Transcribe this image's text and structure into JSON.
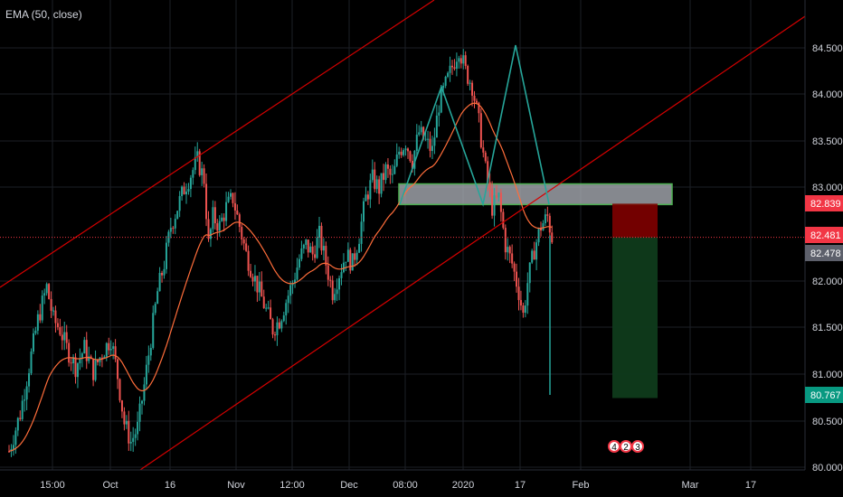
{
  "indicator": {
    "label": "EMA (50, close)"
  },
  "colors": {
    "background": "#000000",
    "grid": "#1c1f26",
    "candle_up": "#26a69a",
    "candle_down": "#ef5350",
    "ema": "#ff6d3a",
    "channel": "#d50000",
    "zigzag": "#26a69a",
    "zone_fill": "#b2b5be",
    "zone_border": "#4caf50",
    "stop_zone": "#7f0000",
    "target_zone": "#0f3b1b"
  },
  "chart_data": {
    "type": "candlestick",
    "symbol_pair_scale": "price",
    "y_ticks": [
      "84.500",
      "84.000",
      "83.500",
      "83.000",
      "82.000",
      "81.500",
      "81.000",
      "80.500",
      "80.000"
    ],
    "ylim": [
      80.0,
      84.85
    ],
    "x_ticks": [
      "15:00",
      "Oct",
      "16",
      "Nov",
      "12:00",
      "Dec",
      "08:00",
      "2020",
      "17",
      "Feb",
      "Mar",
      "17"
    ],
    "price_tags": [
      {
        "label": "82.839",
        "value": 82.839,
        "color": "#f23645"
      },
      {
        "label": "82.481",
        "value": 82.481,
        "color": "#f23645"
      },
      {
        "label": "82.478",
        "value": 82.478,
        "color": "#5d606b"
      },
      {
        "label": "80.767",
        "value": 80.767,
        "color": "#089981"
      }
    ],
    "current_price_line": 82.481,
    "resistance_zone": {
      "from": 82.83,
      "to": 83.05
    },
    "trade_setup": {
      "entry": 82.481,
      "stop": 82.839,
      "target": 80.767
    },
    "event_badges": [
      "4",
      "2",
      "3"
    ],
    "close_path": [
      [
        0,
        80.2
      ],
      [
        5,
        80.6
      ],
      [
        9,
        81.1
      ],
      [
        13,
        81.6
      ],
      [
        17,
        81.95
      ],
      [
        20,
        81.6
      ],
      [
        23,
        81.5
      ],
      [
        26,
        81.3
      ],
      [
        30,
        81.1
      ],
      [
        34,
        81.3
      ],
      [
        38,
        81.05
      ],
      [
        42,
        81.25
      ],
      [
        46,
        81.4
      ],
      [
        49,
        81.0
      ],
      [
        52,
        80.5
      ],
      [
        55,
        80.3
      ],
      [
        58,
        80.45
      ],
      [
        61,
        80.9
      ],
      [
        64,
        81.4
      ],
      [
        67,
        81.9
      ],
      [
        70,
        82.2
      ],
      [
        73,
        82.6
      ],
      [
        76,
        82.8
      ],
      [
        79,
        83.0
      ],
      [
        82,
        83.15
      ],
      [
        85,
        83.3
      ],
      [
        88,
        83.1
      ],
      [
        90,
        82.4
      ],
      [
        92,
        82.7
      ],
      [
        95,
        82.6
      ],
      [
        98,
        82.8
      ],
      [
        101,
        82.9
      ],
      [
        104,
        82.6
      ],
      [
        107,
        82.3
      ],
      [
        110,
        82.1
      ],
      [
        113,
        81.9
      ],
      [
        116,
        81.7
      ],
      [
        119,
        81.5
      ],
      [
        122,
        81.6
      ],
      [
        125,
        81.8
      ],
      [
        128,
        82.0
      ],
      [
        131,
        82.25
      ],
      [
        134,
        82.4
      ],
      [
        137,
        82.3
      ],
      [
        140,
        82.5
      ],
      [
        143,
        82.2
      ],
      [
        146,
        81.9
      ],
      [
        149,
        82.1
      ],
      [
        152,
        82.3
      ],
      [
        155,
        82.2
      ],
      [
        158,
        82.5
      ],
      [
        161,
        82.9
      ],
      [
        164,
        83.1
      ],
      [
        167,
        83.0
      ],
      [
        170,
        83.2
      ],
      [
        173,
        83.1
      ],
      [
        176,
        83.4
      ],
      [
        179,
        83.5
      ],
      [
        182,
        83.3
      ],
      [
        185,
        83.6
      ],
      [
        188,
        83.5
      ],
      [
        191,
        83.4
      ],
      [
        194,
        83.9
      ],
      [
        197,
        84.1
      ],
      [
        200,
        84.3
      ],
      [
        203,
        84.5
      ],
      [
        206,
        84.25
      ],
      [
        209,
        84.1
      ],
      [
        212,
        83.7
      ],
      [
        215,
        83.2
      ],
      [
        218,
        82.8
      ],
      [
        221,
        82.9
      ],
      [
        224,
        82.4
      ],
      [
        227,
        82.2
      ],
      [
        230,
        81.9
      ],
      [
        232,
        81.65
      ],
      [
        234,
        82.0
      ],
      [
        237,
        82.35
      ],
      [
        240,
        82.6
      ],
      [
        243,
        82.7
      ],
      [
        245,
        82.48
      ]
    ]
  }
}
